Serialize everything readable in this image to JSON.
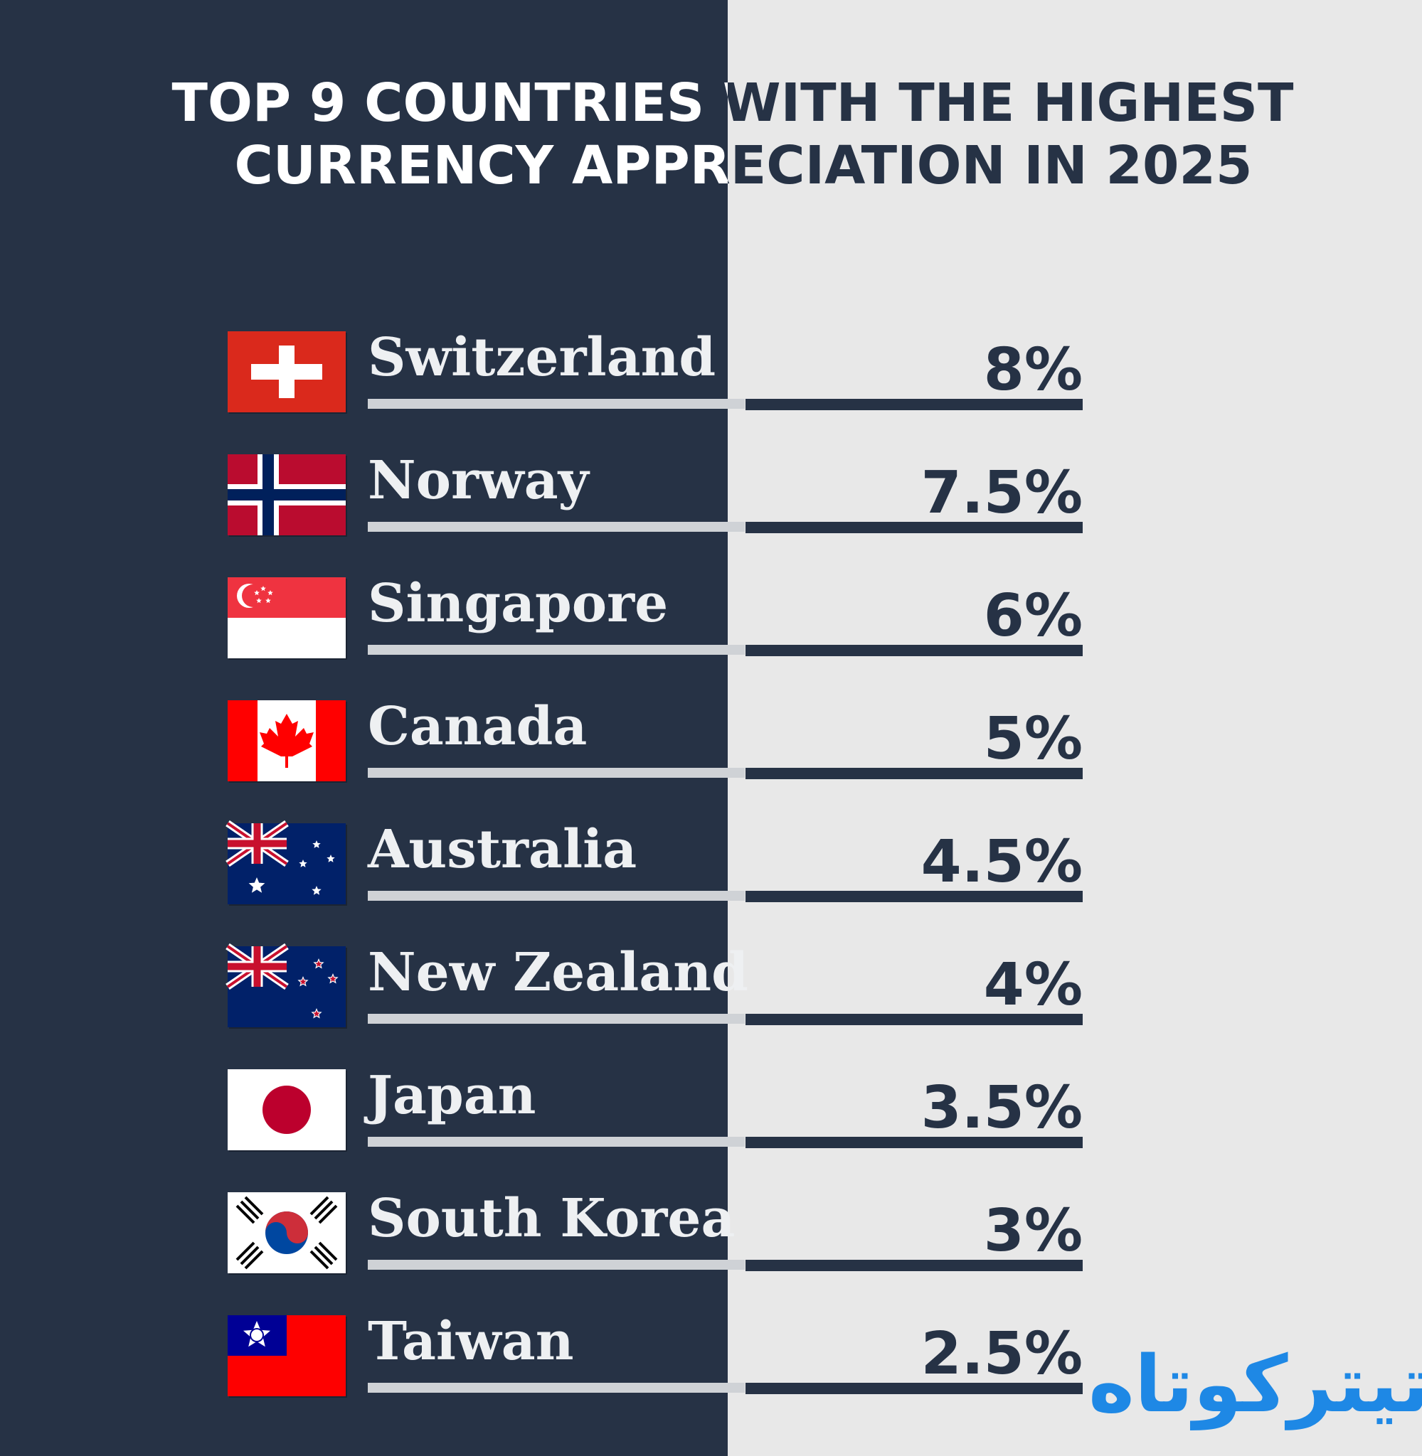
{
  "header": {
    "title_lines": [
      "TOP  9  COUNTRIES WITH THE HIGHEST",
      "CURRENCY APPRECIATION IN 2025"
    ]
  },
  "rows": [
    {
      "country": "Switzerland",
      "value": "8%"
    },
    {
      "country": "Norway",
      "value": "7.5%"
    },
    {
      "country": "Singapore",
      "value": "6%"
    },
    {
      "country": "Canada",
      "value": "5%"
    },
    {
      "country": "Australia",
      "value": "4.5%"
    },
    {
      "country": "New Zealand",
      "value": "4%"
    },
    {
      "country": "Japan",
      "value": "3.5%"
    },
    {
      "country": "South Korea",
      "value": "3%"
    },
    {
      "country": "Taiwan",
      "value": "2.5%"
    }
  ],
  "logo": "تیترکوتاه"
}
